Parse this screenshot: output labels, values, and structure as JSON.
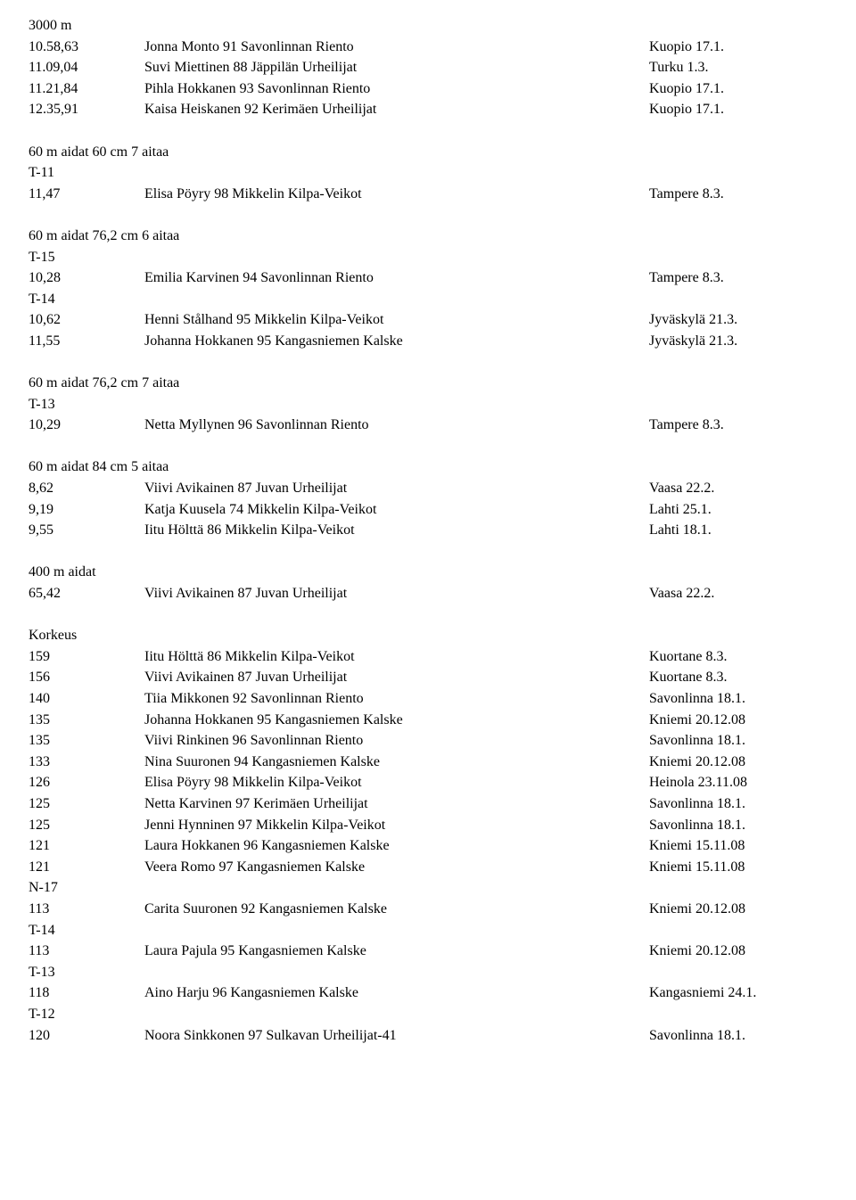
{
  "sections": [
    {
      "heading": "3000 m",
      "groups": [
        {
          "rows": [
            {
              "mark": "10.58,63",
              "name": "Jonna Monto 91 Savonlinnan Riento",
              "loc": "Kuopio 17.1."
            },
            {
              "mark": "11.09,04",
              "name": "Suvi Miettinen 88 Jäppilän Urheilijat",
              "loc": "Turku 1.3."
            },
            {
              "mark": "11.21,84",
              "name": "Pihla Hokkanen 93 Savonlinnan Riento",
              "loc": "Kuopio 17.1."
            },
            {
              "mark": "12.35,91",
              "name": "Kaisa Heiskanen 92 Kerimäen Urheilijat",
              "loc": "Kuopio 17.1."
            }
          ]
        }
      ]
    },
    {
      "heading": "60 m aidat 60 cm 7 aitaa",
      "groups": [
        {
          "subheading": "T-11",
          "rows": [
            {
              "mark": "11,47",
              "name": "Elisa Pöyry 98 Mikkelin Kilpa-Veikot",
              "loc": "Tampere 8.3."
            }
          ]
        }
      ]
    },
    {
      "heading": "60 m aidat 76,2 cm 6 aitaa",
      "groups": [
        {
          "subheading": "T-15",
          "rows": [
            {
              "mark": "10,28",
              "name": "Emilia Karvinen 94 Savonlinnan Riento",
              "loc": "Tampere 8.3."
            }
          ]
        },
        {
          "subheading": "T-14",
          "rows": [
            {
              "mark": "10,62",
              "name": "Henni Stålhand 95 Mikkelin Kilpa-Veikot",
              "loc": "Jyväskylä 21.3."
            },
            {
              "mark": "11,55",
              "name": "Johanna Hokkanen 95 Kangasniemen Kalske",
              "loc": "Jyväskylä 21.3."
            }
          ]
        }
      ]
    },
    {
      "heading": "60 m aidat 76,2 cm 7 aitaa",
      "groups": [
        {
          "subheading": "T-13",
          "rows": [
            {
              "mark": "10,29",
              "name": "Netta Myllynen 96 Savonlinnan Riento",
              "loc": "Tampere 8.3."
            }
          ]
        }
      ]
    },
    {
      "heading": "60 m aidat 84 cm 5 aitaa",
      "groups": [
        {
          "rows": [
            {
              "mark": "8,62",
              "name": "Viivi Avikainen 87 Juvan Urheilijat",
              "loc": "Vaasa 22.2."
            },
            {
              "mark": "9,19",
              "name": "Katja Kuusela 74 Mikkelin Kilpa-Veikot",
              "loc": "Lahti 25.1."
            },
            {
              "mark": "9,55",
              "name": "Iitu Hölttä 86 Mikkelin Kilpa-Veikot",
              "loc": "Lahti 18.1."
            }
          ]
        }
      ]
    },
    {
      "heading": "400 m aidat",
      "groups": [
        {
          "rows": [
            {
              "mark": "65,42",
              "name": "Viivi Avikainen 87 Juvan Urheilijat",
              "loc": "Vaasa 22.2."
            }
          ]
        }
      ]
    },
    {
      "heading": "Korkeus",
      "groups": [
        {
          "rows": [
            {
              "mark": "159",
              "name": "Iitu Hölttä 86 Mikkelin Kilpa-Veikot",
              "loc": "Kuortane 8.3."
            },
            {
              "mark": "156",
              "name": "Viivi Avikainen 87 Juvan Urheilijat",
              "loc": "Kuortane 8.3."
            },
            {
              "mark": "140",
              "name": "Tiia Mikkonen 92 Savonlinnan Riento",
              "loc": "Savonlinna 18.1."
            },
            {
              "mark": "135",
              "name": "Johanna Hokkanen 95 Kangasniemen Kalske",
              "loc": "Kniemi 20.12.08"
            },
            {
              "mark": "135",
              "name": "Viivi Rinkinen 96 Savonlinnan Riento",
              "loc": "Savonlinna 18.1."
            },
            {
              "mark": "133",
              "name": "Nina Suuronen 94 Kangasniemen Kalske",
              "loc": "Kniemi 20.12.08"
            },
            {
              "mark": "126",
              "name": "Elisa Pöyry 98 Mikkelin Kilpa-Veikot",
              "loc": "Heinola 23.11.08"
            },
            {
              "mark": "125",
              "name": "Netta Karvinen 97 Kerimäen Urheilijat",
              "loc": "Savonlinna 18.1."
            },
            {
              "mark": "125",
              "name": "Jenni Hynninen 97 Mikkelin Kilpa-Veikot",
              "loc": "Savonlinna 18.1."
            },
            {
              "mark": "121",
              "name": "Laura Hokkanen 96 Kangasniemen Kalske",
              "loc": "Kniemi 15.11.08"
            },
            {
              "mark": "121",
              "name": "Veera Romo 97 Kangasniemen Kalske",
              "loc": "Kniemi 15.11.08"
            }
          ]
        },
        {
          "subheading": "N-17",
          "rows": [
            {
              "mark": "113",
              "name": "Carita Suuronen 92 Kangasniemen Kalske",
              "loc": "Kniemi 20.12.08"
            }
          ]
        },
        {
          "subheading": "T-14",
          "rows": [
            {
              "mark": "113",
              "name": "Laura Pajula 95 Kangasniemen Kalske",
              "loc": "Kniemi 20.12.08"
            }
          ]
        },
        {
          "subheading": "T-13",
          "rows": [
            {
              "mark": "118",
              "name": "Aino Harju 96 Kangasniemen Kalske",
              "loc": "Kangasniemi 24.1."
            }
          ]
        },
        {
          "subheading": "T-12",
          "rows": [
            {
              "mark": "120",
              "name": "Noora Sinkkonen 97 Sulkavan Urheilijat-41",
              "loc": "Savonlinna 18.1."
            }
          ]
        }
      ]
    }
  ]
}
